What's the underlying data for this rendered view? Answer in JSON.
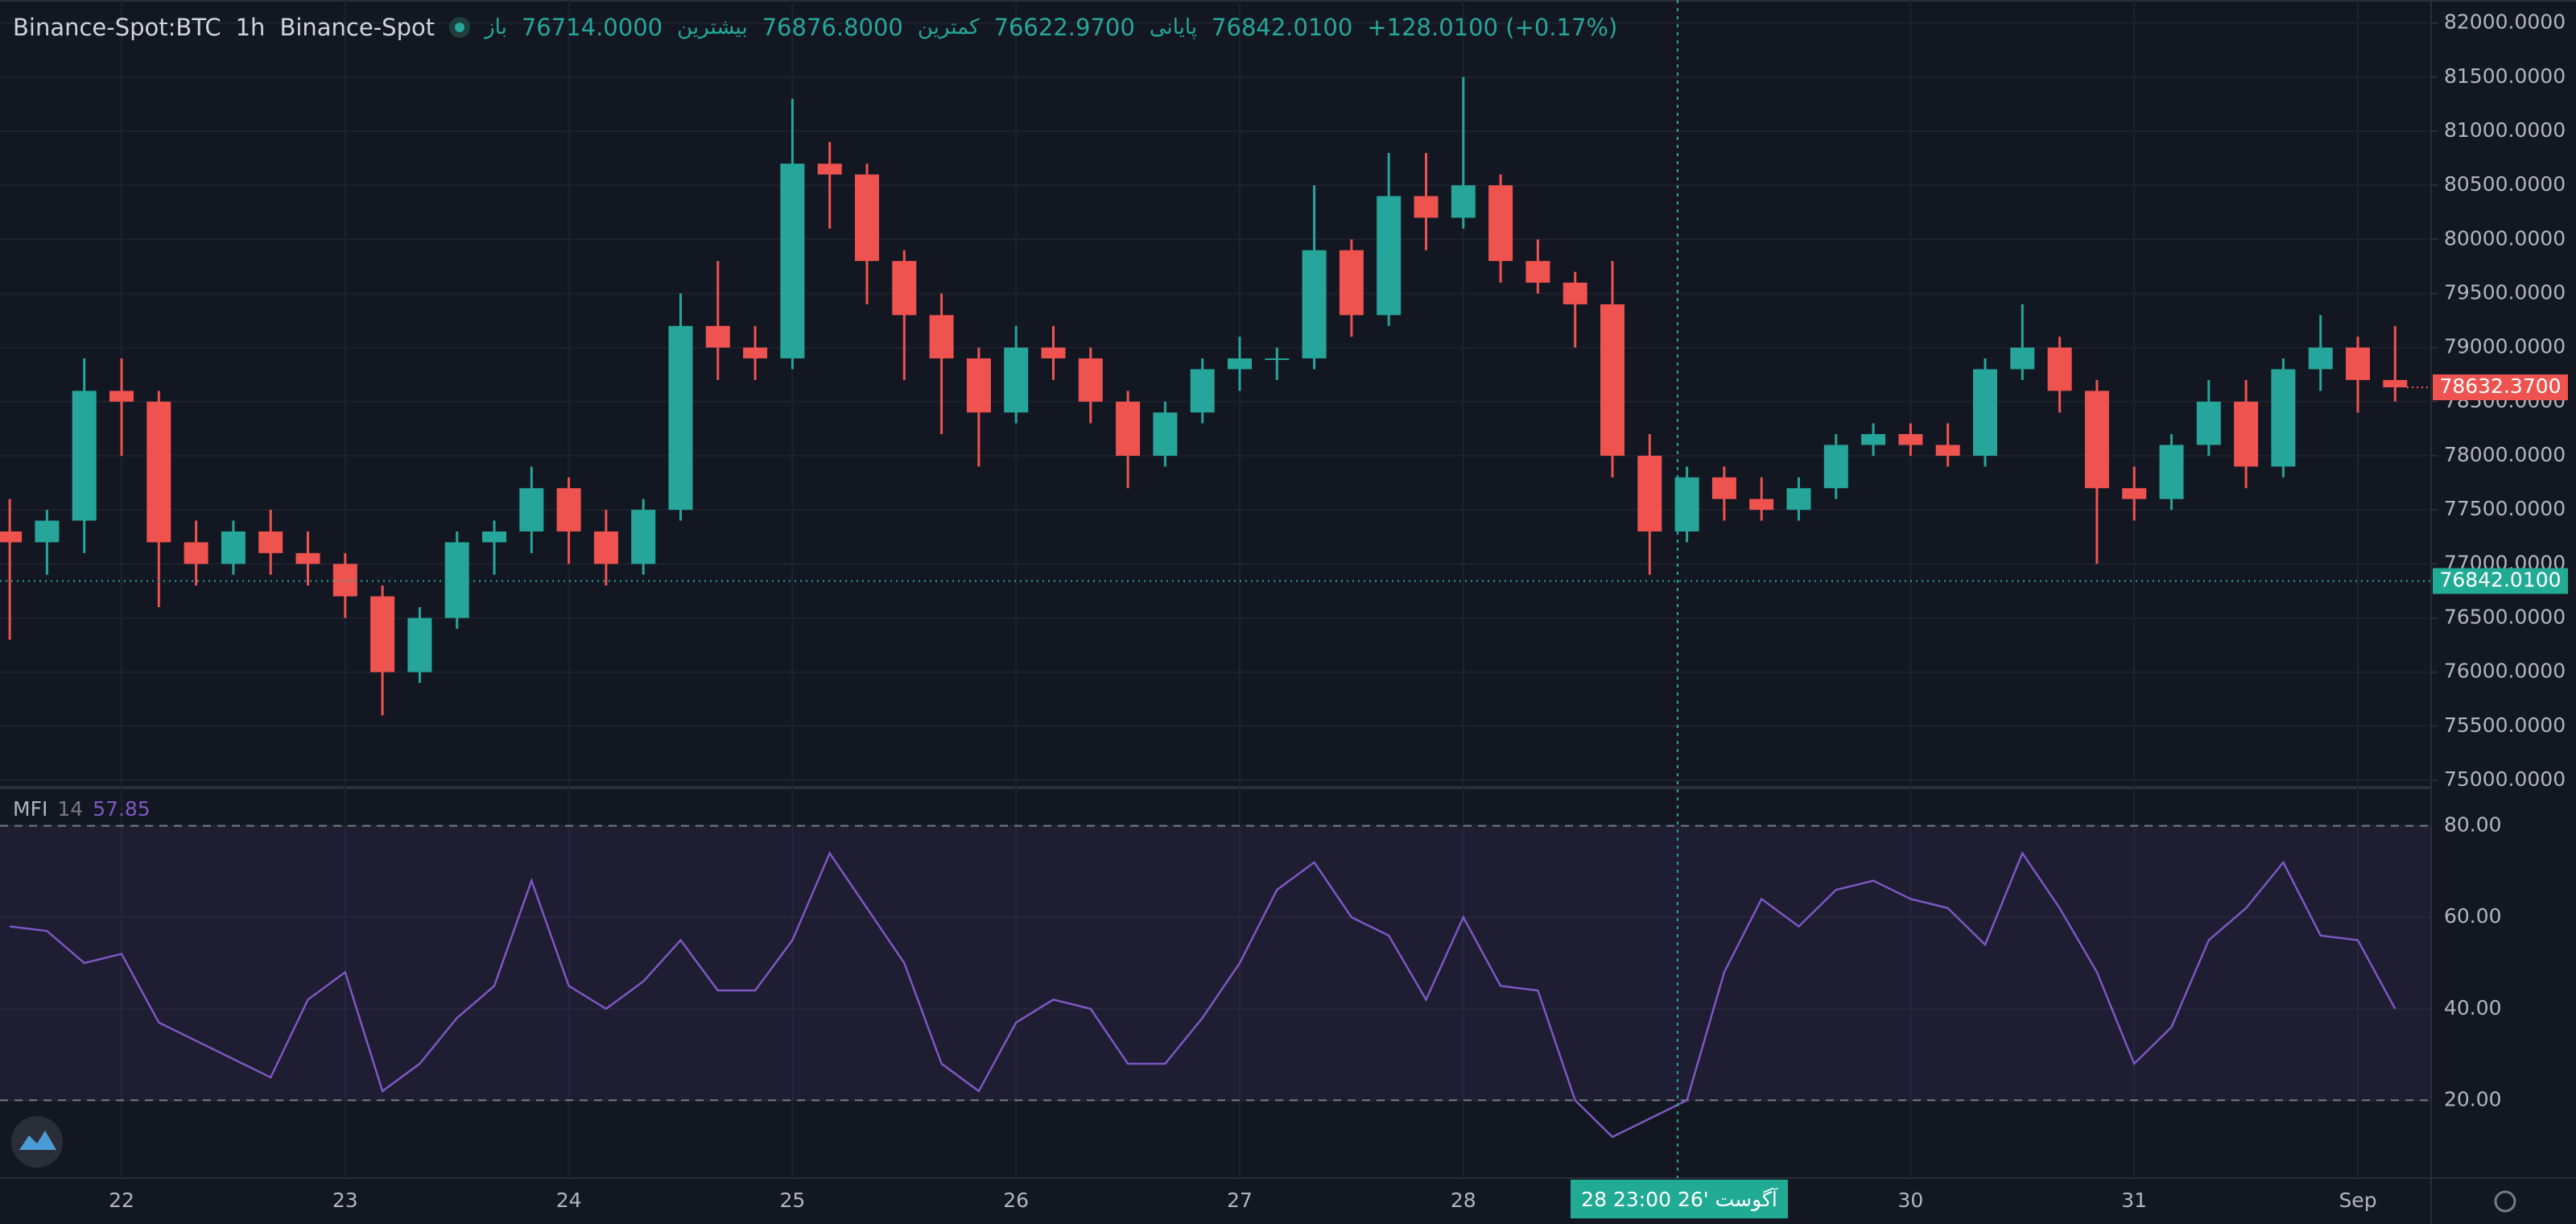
{
  "header": {
    "symbol": "Binance-Spot:BTC",
    "interval": "1h",
    "exchange": "Binance-Spot",
    "ohlc": [
      {
        "label": "باز",
        "value": "76714.0000"
      },
      {
        "label": "بیشترین",
        "value": "76876.8000"
      },
      {
        "label": "کمترین",
        "value": "76622.9700"
      },
      {
        "label": "پایانی",
        "value": "76842.0100"
      }
    ],
    "change": "+128.0100 (+0.17%)"
  },
  "chart_data": [
    {
      "type": "candlestick",
      "categories": [
        null,
        null,
        null,
        "22",
        null,
        null,
        null,
        null,
        null,
        "23",
        null,
        null,
        null,
        null,
        null,
        "24",
        null,
        null,
        null,
        null,
        null,
        "25",
        null,
        null,
        null,
        null,
        null,
        "26",
        null,
        null,
        null,
        null,
        null,
        "27",
        null,
        null,
        null,
        null,
        null,
        "28",
        null,
        null,
        null,
        null,
        null,
        null,
        null,
        null,
        null,
        null,
        null,
        "30",
        null,
        null,
        null,
        null,
        null,
        "31",
        null,
        null,
        null,
        null,
        null,
        "Sep",
        null
      ],
      "open": [
        77300,
        77200,
        77400,
        78600,
        78500,
        77200,
        77000,
        77300,
        77100,
        77000,
        76700,
        76000,
        76500,
        77200,
        77300,
        77700,
        77300,
        77000,
        77500,
        79200,
        79000,
        78900,
        80700,
        80600,
        79800,
        79300,
        78900,
        78400,
        79000,
        78900,
        78500,
        78000,
        78400,
        78800,
        78900,
        78900,
        79900,
        79300,
        80400,
        80200,
        80500,
        79800,
        79600,
        79400,
        78000,
        77300,
        77800,
        77600,
        77500,
        77700,
        78100,
        78200,
        78100,
        78000,
        78800,
        79000,
        78600,
        77700,
        77600,
        78100,
        78500,
        77900,
        78800,
        79000,
        78700
      ],
      "high": [
        77600,
        77500,
        78900,
        78900,
        78600,
        77400,
        77400,
        77500,
        77300,
        77100,
        76800,
        76600,
        77300,
        77400,
        77900,
        77800,
        77500,
        77600,
        79500,
        79800,
        79200,
        81300,
        80900,
        80700,
        79900,
        79500,
        79000,
        79200,
        79200,
        79000,
        78600,
        78500,
        78900,
        79100,
        79000,
        80500,
        80000,
        80800,
        80800,
        81500,
        80600,
        80000,
        79700,
        79800,
        78200,
        77900,
        77900,
        77800,
        77800,
        78200,
        78300,
        78300,
        78300,
        78900,
        79400,
        79100,
        78700,
        77900,
        78200,
        78700,
        78700,
        78900,
        79300,
        79100,
        79200
      ],
      "low": [
        76300,
        76900,
        77100,
        78000,
        76600,
        76800,
        76900,
        76900,
        76800,
        76500,
        75600,
        75900,
        76400,
        76900,
        77100,
        77000,
        76800,
        76900,
        77400,
        78700,
        78700,
        78800,
        80100,
        79400,
        78700,
        78200,
        77900,
        78300,
        78700,
        78300,
        77700,
        77900,
        78300,
        78600,
        78700,
        78800,
        79100,
        79200,
        79900,
        80100,
        79600,
        79500,
        79000,
        77800,
        76900,
        77200,
        77400,
        77400,
        77400,
        77600,
        78000,
        78000,
        77900,
        77900,
        78700,
        78400,
        77000,
        77400,
        77500,
        78000,
        77700,
        77800,
        78600,
        78400,
        78500
      ],
      "close": [
        77200,
        77400,
        78600,
        78500,
        77200,
        77000,
        77300,
        77100,
        77000,
        76700,
        76000,
        76500,
        77200,
        77300,
        77700,
        77300,
        77000,
        77500,
        79200,
        79000,
        78900,
        80700,
        80600,
        79800,
        79300,
        78900,
        78400,
        79000,
        78900,
        78500,
        78000,
        78400,
        78800,
        78900,
        78900,
        79900,
        79300,
        80400,
        80200,
        80500,
        79800,
        79600,
        79400,
        78000,
        77300,
        77800,
        77600,
        77500,
        77700,
        78100,
        78200,
        78100,
        78000,
        78800,
        79000,
        78600,
        77700,
        77600,
        78100,
        78500,
        77900,
        78800,
        79000,
        78700,
        78632.37
      ],
      "up_color": "#26a69a",
      "down_color": "#ef5350",
      "ylim": [
        74955,
        82213
      ],
      "yticks": [
        {
          "value": 75000,
          "label": "75000.0000"
        },
        {
          "value": 75500,
          "label": "75500.0000"
        },
        {
          "value": 76000,
          "label": "76000.0000"
        },
        {
          "value": 76500,
          "label": "76500.0000"
        },
        {
          "value": 77000,
          "label": "77000.0000"
        },
        {
          "value": 77500,
          "label": "77500.0000"
        },
        {
          "value": 78000,
          "label": "78000.0000"
        },
        {
          "value": 78500,
          "label": "78500.0000"
        },
        {
          "value": 79000,
          "label": "79000.0000"
        },
        {
          "value": 79500,
          "label": "79500.0000"
        },
        {
          "value": 80000,
          "label": "80000.0000"
        },
        {
          "value": 80500,
          "label": "80500.0000"
        },
        {
          "value": 81000,
          "label": "81000.0000"
        },
        {
          "value": 81500,
          "label": "81500.0000"
        },
        {
          "value": 82000,
          "label": "82000.0000"
        }
      ],
      "grid": true,
      "last_price": {
        "value": 78632.37,
        "label": "78632.3700"
      },
      "crosshair_price": {
        "value": 76842.01,
        "label": "76842.0100"
      },
      "crosshair_label": "28 آگوست '26 23:00"
    },
    {
      "type": "line",
      "title": "MFI",
      "parameters": "14",
      "value_label": "57.85",
      "color": "#7e57c2",
      "values": [
        58,
        57,
        50,
        52,
        37,
        33,
        29,
        25,
        42,
        48,
        22,
        28,
        38,
        45,
        68,
        45,
        40,
        46,
        55,
        44,
        44,
        55,
        74,
        62,
        50,
        28,
        22,
        37,
        42,
        40,
        28,
        28,
        38,
        50,
        66,
        72,
        60,
        56,
        42,
        60,
        45,
        44,
        20,
        12,
        16,
        20,
        48,
        64,
        58,
        66,
        68,
        64,
        62,
        54,
        74,
        62,
        48,
        28,
        36,
        55,
        62,
        72,
        56,
        55,
        40
      ],
      "ylim": [
        3,
        88
      ],
      "yticks": [
        {
          "value": 20,
          "label": "20.00"
        },
        {
          "value": 40,
          "label": "40.00"
        },
        {
          "value": 60,
          "label": "60.00"
        },
        {
          "value": 80,
          "label": "80.00"
        }
      ],
      "bands": [
        20,
        80
      ]
    }
  ]
}
